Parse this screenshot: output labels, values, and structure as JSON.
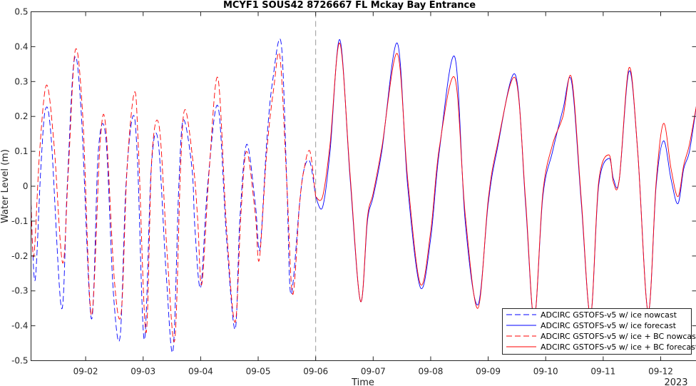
{
  "chart_data": {
    "type": "line",
    "title": "MCYF1 SOUS42 8726667 FL Mckay Bay Entrance",
    "xlabel": "Time",
    "ylabel": "Water Level (m)",
    "year_label": "2023",
    "x_unit": "days since 2023-09-01 00:00",
    "xlim": [
      1.05,
      12.62
    ],
    "ylim": [
      -0.5,
      0.5
    ],
    "yticks": [
      -0.5,
      -0.4,
      -0.3,
      -0.2,
      -0.1,
      0,
      0.1,
      0.2,
      0.3,
      0.4,
      0.5
    ],
    "ytick_labels": [
      "-0.5",
      "-0.4",
      "-0.3",
      "-0.2",
      "-0.1",
      "0",
      "0.1",
      "0.2",
      "0.3",
      "0.4",
      "0.5"
    ],
    "xticks": [
      2,
      3,
      4,
      5,
      6,
      7,
      8,
      9,
      10,
      11,
      12
    ],
    "xtick_labels": [
      "09-02",
      "09-03",
      "09-04",
      "09-05",
      "09-06",
      "09-07",
      "09-08",
      "09-09",
      "09-10",
      "09-11",
      "09-12"
    ],
    "forecast_start": 6.0,
    "grid": false,
    "legend_position": "bottom-right",
    "colors": {
      "blue": "#0000ff",
      "red": "#ff0000",
      "divider": "#999999"
    },
    "series": [
      {
        "name": "ADCIRC GSTOFS-v5 w/ ice nowcast",
        "color": "#0000ff",
        "style": "dashed",
        "x": [
          1.05,
          1.12,
          1.22,
          1.3,
          1.4,
          1.58,
          1.68,
          1.8,
          1.92,
          2.1,
          2.22,
          2.35,
          2.48,
          2.6,
          2.7,
          2.82,
          2.9,
          3.02,
          3.14,
          3.26,
          3.4,
          3.52,
          3.62,
          3.7,
          3.85,
          3.9,
          4.0,
          4.12,
          4.3,
          4.45,
          4.6,
          4.68,
          4.8,
          4.95,
          5.03,
          5.15,
          5.25,
          5.4,
          5.5,
          5.57,
          5.72,
          5.8,
          5.9,
          6.0
        ],
        "y": [
          -0.05,
          -0.27,
          0.05,
          0.22,
          0.14,
          -0.35,
          0.0,
          0.36,
          0.22,
          -0.38,
          0.1,
          0.14,
          -0.3,
          -0.43,
          0.0,
          0.2,
          0.08,
          -0.44,
          0.05,
          0.13,
          -0.25,
          -0.47,
          0.0,
          0.19,
          0.05,
          -0.12,
          -0.29,
          0.0,
          0.23,
          -0.15,
          -0.41,
          -0.1,
          0.12,
          -0.05,
          -0.18,
          0.13,
          0.3,
          0.41,
          0.0,
          -0.31,
          -0.05,
          0.05,
          0.07,
          -0.03
        ]
      },
      {
        "name": "ADCIRC GSTOFS-v5 w/ ice forecast",
        "color": "#0000ff",
        "style": "solid",
        "x": [
          6.0,
          6.12,
          6.25,
          6.42,
          6.6,
          6.78,
          6.9,
          7.0,
          7.15,
          7.42,
          7.6,
          7.82,
          8.0,
          8.15,
          8.42,
          8.6,
          8.82,
          9.0,
          9.15,
          9.47,
          9.65,
          9.8,
          9.95,
          10.12,
          10.3,
          10.45,
          10.62,
          10.78,
          10.92,
          11.1,
          11.18,
          11.28,
          11.45,
          11.6,
          11.78,
          11.92,
          12.05,
          12.18,
          12.3,
          12.4,
          12.5,
          12.62
        ],
        "y": [
          -0.03,
          -0.06,
          0.1,
          0.42,
          0.02,
          -0.33,
          -0.1,
          -0.03,
          0.1,
          0.41,
          0.0,
          -0.29,
          -0.15,
          0.1,
          0.37,
          -0.1,
          -0.34,
          -0.05,
          0.1,
          0.32,
          -0.05,
          -0.38,
          -0.03,
          0.1,
          0.22,
          0.3,
          -0.05,
          -0.37,
          0.0,
          0.08,
          0.02,
          0.02,
          0.33,
          0.1,
          -0.36,
          0.0,
          0.13,
          0.02,
          -0.05,
          0.05,
          0.1,
          0.23
        ]
      },
      {
        "name": "ADCIRC GSTOFS-v5 w/ ice + BC nowcast",
        "color": "#ff0000",
        "style": "dashed",
        "x": [
          1.05,
          1.1,
          1.2,
          1.32,
          1.45,
          1.6,
          1.7,
          1.82,
          1.95,
          2.1,
          2.25,
          2.35,
          2.5,
          2.62,
          2.72,
          2.85,
          2.92,
          3.05,
          3.15,
          3.28,
          3.42,
          3.55,
          3.65,
          3.73,
          3.88,
          3.95,
          4.02,
          4.15,
          4.3,
          4.45,
          4.6,
          4.7,
          4.8,
          4.95,
          5.02,
          5.15,
          5.27,
          5.38,
          5.5,
          5.6,
          5.72,
          5.8,
          5.9,
          6.0
        ],
        "y": [
          -0.05,
          -0.2,
          0.1,
          0.29,
          0.12,
          -0.22,
          0.05,
          0.39,
          0.2,
          -0.37,
          0.12,
          0.17,
          -0.27,
          -0.36,
          0.05,
          0.27,
          0.1,
          -0.42,
          0.08,
          0.17,
          -0.2,
          -0.44,
          0.05,
          0.22,
          0.05,
          -0.1,
          -0.28,
          0.05,
          0.31,
          -0.12,
          -0.39,
          -0.08,
          0.1,
          -0.08,
          -0.21,
          0.1,
          0.28,
          0.37,
          0.0,
          -0.31,
          -0.05,
          0.05,
          0.1,
          -0.03
        ]
      },
      {
        "name": "ADCIRC GSTOFS-v5 w/ ice + BC forecast",
        "color": "#ff0000",
        "style": "solid",
        "x": [
          6.0,
          6.12,
          6.25,
          6.42,
          6.6,
          6.78,
          6.9,
          7.0,
          7.15,
          7.42,
          7.6,
          7.82,
          8.0,
          8.15,
          8.42,
          8.6,
          8.82,
          9.0,
          9.15,
          9.47,
          9.65,
          9.8,
          9.95,
          10.12,
          10.3,
          10.45,
          10.62,
          10.78,
          10.92,
          11.1,
          11.18,
          11.28,
          11.45,
          11.6,
          11.78,
          11.92,
          12.05,
          12.18,
          12.3,
          12.4,
          12.5,
          12.62
        ],
        "y": [
          -0.03,
          -0.03,
          0.12,
          0.41,
          0.03,
          -0.33,
          -0.09,
          -0.02,
          0.11,
          0.38,
          0.02,
          -0.28,
          -0.13,
          0.11,
          0.31,
          -0.08,
          -0.35,
          -0.04,
          0.11,
          0.31,
          -0.04,
          -0.38,
          -0.02,
          0.12,
          0.2,
          0.31,
          -0.04,
          -0.37,
          0.01,
          0.09,
          0.01,
          0.02,
          0.34,
          0.1,
          -0.36,
          0.01,
          0.18,
          0.05,
          -0.03,
          0.06,
          0.12,
          0.23
        ]
      }
    ]
  }
}
